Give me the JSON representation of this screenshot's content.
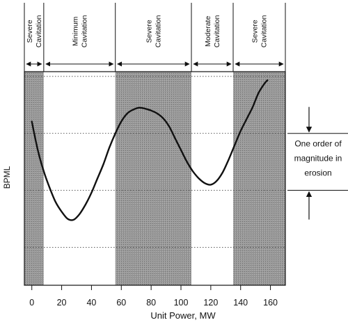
{
  "chart_data": {
    "type": "line",
    "title": "",
    "xlabel": "Unit Power, MW",
    "ylabel": "BPML",
    "xlim": [
      -5,
      170
    ],
    "ylim": [
      0,
      4.5
    ],
    "x_ticks": [
      0,
      20,
      40,
      60,
      80,
      100,
      120,
      140,
      160
    ],
    "y_gridlines": [
      0.8,
      2.0,
      3.2,
      4.4
    ],
    "grid": true,
    "series": [
      {
        "x": [
          0,
          4,
          8,
          12,
          16,
          20,
          24,
          28,
          32,
          36,
          40,
          44,
          48,
          52,
          56,
          60,
          64,
          68,
          72,
          76,
          80,
          84,
          88,
          92,
          96,
          100,
          104,
          108,
          112,
          116,
          120,
          124,
          128,
          132,
          136,
          140,
          144,
          148,
          152,
          156,
          158
        ],
        "y": [
          3.45,
          2.85,
          2.4,
          2.05,
          1.75,
          1.55,
          1.4,
          1.38,
          1.5,
          1.7,
          1.95,
          2.25,
          2.55,
          2.9,
          3.2,
          3.45,
          3.62,
          3.7,
          3.74,
          3.72,
          3.68,
          3.62,
          3.52,
          3.35,
          3.1,
          2.85,
          2.6,
          2.4,
          2.25,
          2.15,
          2.12,
          2.2,
          2.38,
          2.65,
          2.95,
          3.25,
          3.5,
          3.75,
          4.05,
          4.25,
          4.32
        ]
      }
    ],
    "regions": [
      {
        "label": "Severe Cavitation",
        "x0": -5,
        "x1": 8,
        "shaded": true
      },
      {
        "label": "Minimum Cavitation",
        "x0": 8,
        "x1": 56,
        "shaded": false
      },
      {
        "label": "Severe Cavitation",
        "x0": 56,
        "x1": 107,
        "shaded": true
      },
      {
        "label": "Moderate Cavitation",
        "x0": 107,
        "x1": 135,
        "shaded": false
      },
      {
        "label": "Severe Cavitation",
        "x0": 135,
        "x1": 170,
        "shaded": true
      }
    ],
    "annotations": {
      "magnitude_text": [
        "One order of",
        "magnitude in",
        "erosion"
      ],
      "magnitude_span": [
        2.0,
        3.2
      ]
    }
  }
}
